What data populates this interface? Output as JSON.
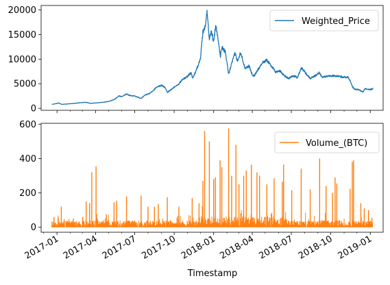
{
  "chart_data": [
    {
      "type": "line",
      "x_type": "date",
      "series": [
        {
          "name": "Weighted_Price",
          "color": "#1f77b4",
          "points": [
            [
              "2016-12-20",
              800
            ],
            [
              "2017-01-01",
              990
            ],
            [
              "2017-01-05",
              1100
            ],
            [
              "2017-01-12",
              800
            ],
            [
              "2017-01-25",
              900
            ],
            [
              "2017-02-10",
              1000
            ],
            [
              "2017-02-25",
              1150
            ],
            [
              "2017-03-10",
              1230
            ],
            [
              "2017-03-20",
              1000
            ],
            [
              "2017-04-01",
              1100
            ],
            [
              "2017-04-20",
              1250
            ],
            [
              "2017-05-01",
              1400
            ],
            [
              "2017-05-15",
              1800
            ],
            [
              "2017-05-25",
              2500
            ],
            [
              "2017-06-01",
              2400
            ],
            [
              "2017-06-12",
              2900
            ],
            [
              "2017-06-20",
              2600
            ],
            [
              "2017-07-01",
              2500
            ],
            [
              "2017-07-16",
              2000
            ],
            [
              "2017-07-25",
              2700
            ],
            [
              "2017-08-05",
              3000
            ],
            [
              "2017-08-20",
              4200
            ],
            [
              "2017-09-01",
              4700
            ],
            [
              "2017-09-10",
              4200
            ],
            [
              "2017-09-15",
              3200
            ],
            [
              "2017-09-25",
              3900
            ],
            [
              "2017-10-10",
              4800
            ],
            [
              "2017-10-20",
              5800
            ],
            [
              "2017-11-01",
              6500
            ],
            [
              "2017-11-10",
              7300
            ],
            [
              "2017-11-13",
              6000
            ],
            [
              "2017-11-25",
              8500
            ],
            [
              "2017-12-01",
              10000
            ],
            [
              "2017-12-07",
              15500
            ],
            [
              "2017-12-12",
              16500
            ],
            [
              "2017-12-17",
              19800
            ],
            [
              "2017-12-22",
              14000
            ],
            [
              "2017-12-27",
              15800
            ],
            [
              "2018-01-01",
              13500
            ],
            [
              "2018-01-06",
              16800
            ],
            [
              "2018-01-12",
              13500
            ],
            [
              "2018-01-17",
              10500
            ],
            [
              "2018-01-20",
              12500
            ],
            [
              "2018-01-28",
              11500
            ],
            [
              "2018-02-05",
              6900
            ],
            [
              "2018-02-10",
              8500
            ],
            [
              "2018-02-20",
              11300
            ],
            [
              "2018-02-25",
              9600
            ],
            [
              "2018-03-05",
              11400
            ],
            [
              "2018-03-15",
              8200
            ],
            [
              "2018-03-25",
              8600
            ],
            [
              "2018-04-01",
              6800
            ],
            [
              "2018-04-06",
              6600
            ],
            [
              "2018-04-15",
              8000
            ],
            [
              "2018-04-25",
              9300
            ],
            [
              "2018-05-05",
              9800
            ],
            [
              "2018-05-15",
              8700
            ],
            [
              "2018-05-25",
              7400
            ],
            [
              "2018-06-05",
              7600
            ],
            [
              "2018-06-15",
              6600
            ],
            [
              "2018-06-25",
              6100
            ],
            [
              "2018-07-05",
              6600
            ],
            [
              "2018-07-15",
              6300
            ],
            [
              "2018-07-25",
              8200
            ],
            [
              "2018-08-05",
              7000
            ],
            [
              "2018-08-14",
              6100
            ],
            [
              "2018-08-25",
              6600
            ],
            [
              "2018-09-05",
              7300
            ],
            [
              "2018-09-10",
              6300
            ],
            [
              "2018-09-25",
              6600
            ],
            [
              "2018-10-10",
              6600
            ],
            [
              "2018-10-25",
              6400
            ],
            [
              "2018-11-10",
              6350
            ],
            [
              "2018-11-15",
              5600
            ],
            [
              "2018-11-20",
              4500
            ],
            [
              "2018-11-25",
              3900
            ],
            [
              "2018-12-05",
              3800
            ],
            [
              "2018-12-15",
              3300
            ],
            [
              "2018-12-20",
              4000
            ],
            [
              "2018-12-25",
              3900
            ],
            [
              "2019-01-01",
              3800
            ],
            [
              "2019-01-08",
              4000
            ]
          ]
        }
      ],
      "xlim": [
        "2016-11-25",
        "2019-01-31"
      ],
      "ylim": [
        -400,
        20900
      ],
      "yticks": [
        0,
        5000,
        10000,
        15000,
        20000
      ],
      "ytick_labels": [
        "0",
        "5000",
        "10000",
        "15000",
        "20000"
      ],
      "xlabel": "",
      "ylabel": "",
      "legend": "top-right",
      "grid": false
    },
    {
      "type": "line",
      "x_type": "date",
      "series": [
        {
          "name": "Volume_(BTC)",
          "color": "#ff7f0e",
          "baseline_range": [
            0,
            40
          ],
          "spikes": [
            [
              "2016-12-25",
              60
            ],
            [
              "2017-01-04",
              55
            ],
            [
              "2017-01-11",
              120
            ],
            [
              "2017-02-08",
              50
            ],
            [
              "2017-03-02",
              60
            ],
            [
              "2017-03-10",
              150
            ],
            [
              "2017-03-18",
              140
            ],
            [
              "2017-03-23",
              320
            ],
            [
              "2017-04-02",
              355
            ],
            [
              "2017-04-26",
              75
            ],
            [
              "2017-05-14",
              145
            ],
            [
              "2017-05-20",
              155
            ],
            [
              "2017-06-12",
              180
            ],
            [
              "2017-07-16",
              185
            ],
            [
              "2017-08-01",
              120
            ],
            [
              "2017-08-16",
              120
            ],
            [
              "2017-08-25",
              135
            ],
            [
              "2017-09-15",
              175
            ],
            [
              "2017-10-12",
              120
            ],
            [
              "2017-11-12",
              170
            ],
            [
              "2017-11-28",
              140
            ],
            [
              "2017-12-07",
              270
            ],
            [
              "2017-12-11",
              560
            ],
            [
              "2017-12-22",
              500
            ],
            [
              "2018-01-01",
              280
            ],
            [
              "2018-01-05",
              290
            ],
            [
              "2018-01-16",
              390
            ],
            [
              "2018-01-20",
              350
            ],
            [
              "2018-02-05",
              575
            ],
            [
              "2018-02-12",
              300
            ],
            [
              "2018-02-22",
              480
            ],
            [
              "2018-03-01",
              250
            ],
            [
              "2018-03-12",
              300
            ],
            [
              "2018-03-18",
              330
            ],
            [
              "2018-03-30",
              365
            ],
            [
              "2018-04-12",
              320
            ],
            [
              "2018-04-18",
              300
            ],
            [
              "2018-05-05",
              250
            ],
            [
              "2018-05-22",
              285
            ],
            [
              "2018-06-10",
              265
            ],
            [
              "2018-06-13",
              365
            ],
            [
              "2018-07-02",
              215
            ],
            [
              "2018-07-24",
              340
            ],
            [
              "2018-08-14",
              220
            ],
            [
              "2018-09-05",
              400
            ],
            [
              "2018-09-20",
              240
            ],
            [
              "2018-10-05",
              200
            ],
            [
              "2018-10-11",
              290
            ],
            [
              "2018-10-15",
              255
            ],
            [
              "2018-11-15",
              225
            ],
            [
              "2018-11-20",
              380
            ],
            [
              "2018-11-23",
              390
            ],
            [
              "2018-12-10",
              140
            ],
            [
              "2018-12-18",
              110
            ],
            [
              "2018-12-28",
              100
            ],
            [
              "2019-01-05",
              55
            ]
          ]
        }
      ],
      "xlim": [
        "2016-11-25",
        "2019-01-31"
      ],
      "ylim": [
        -29,
        605
      ],
      "yticks": [
        0,
        200,
        400,
        600
      ],
      "ytick_labels": [
        "0",
        "200",
        "400",
        "600"
      ],
      "xticks": [
        "2017-01-01",
        "2017-04-01",
        "2017-07-01",
        "2017-10-01",
        "2018-01-01",
        "2018-04-01",
        "2018-07-01",
        "2018-10-01",
        "2019-01-01"
      ],
      "xtick_labels": [
        "2017-01",
        "2017-04",
        "2017-07",
        "2017-10",
        "2018-01",
        "2018-04",
        "2018-07",
        "2018-10",
        "2019-01"
      ],
      "xlabel": "Timestamp",
      "ylabel": "",
      "legend": "top-right",
      "grid": false
    }
  ]
}
